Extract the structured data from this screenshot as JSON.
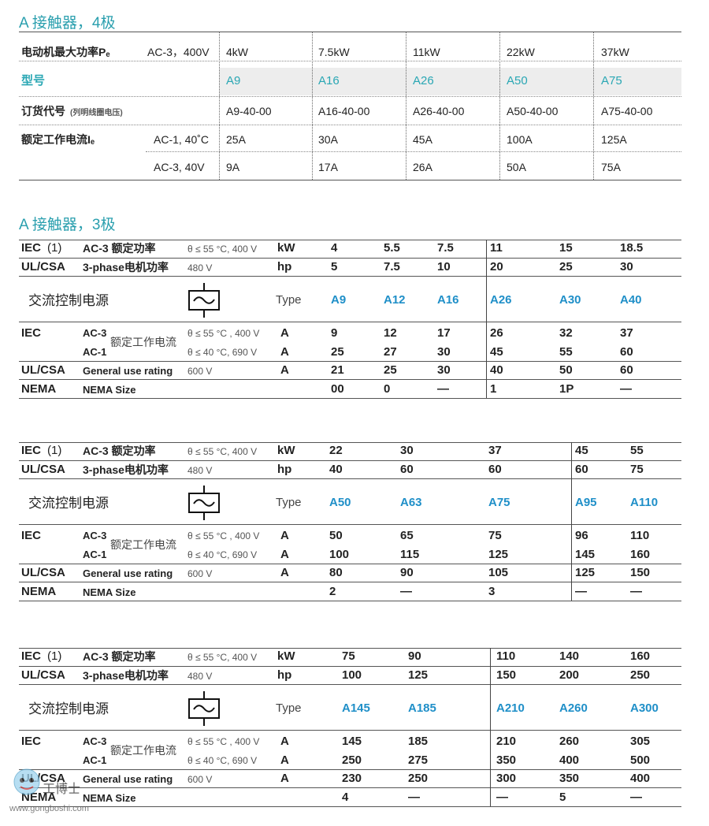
{
  "four_pole": {
    "title": "A 接触器，4极",
    "rows": [
      {
        "label": "电动机最大功率Pₑ",
        "sub": "AC-3，400V",
        "values": [
          "4kW",
          "7.5kW",
          "11kW",
          "22kW",
          "37kW"
        ]
      },
      {
        "label": "型号",
        "sub": "",
        "values": [
          "A9",
          "A16",
          "A26",
          "A50",
          "A75"
        ],
        "highlight": true
      },
      {
        "label": "订货代号",
        "label_note": "(列明线圈电压)",
        "sub": "",
        "values": [
          "A9-40-00",
          "A16-40-00",
          "A26-40-00",
          "A50-40-00",
          "A75-40-00"
        ]
      },
      {
        "label": "额定工作电流Iₑ",
        "sub": "AC-1, 40˚C",
        "values": [
          "25A",
          "30A",
          "45A",
          "100A",
          "125A"
        ]
      },
      {
        "label": "",
        "sub": "AC-3, 40V",
        "values": [
          "9A",
          "17A",
          "26A",
          "50A",
          "75A"
        ]
      }
    ]
  },
  "three_pole": {
    "title": "A 接触器，3极",
    "labels": {
      "iec1": "IEC",
      "iec1_note": "(1)",
      "ac3_power": "AC-3 额定功率",
      "cond_55_400": "θ ≤ 55 °C, 400 V",
      "kw": "kW",
      "ulcsa": "UL/CSA",
      "three_phase": "3-phase电机功率",
      "v480": "480 V",
      "hp": "hp",
      "ac_control": "交流控制电源",
      "type": "Type",
      "iec": "IEC",
      "ac3": "AC-3",
      "ac1": "AC-1",
      "rated_current": "额定工作电流",
      "cond_55_400b": "θ ≤ 55 °C , 400 V",
      "cond_40_690": "θ ≤ 40 °C, 690 V",
      "amp": "A",
      "general_use": "General use rating",
      "v600": "600 V",
      "nema": "NEMA",
      "nema_size": "NEMA Size"
    },
    "tables": [
      {
        "kw": [
          "4",
          "5.5",
          "7.5",
          "11",
          "15",
          "18.5"
        ],
        "hp": [
          "5",
          "7.5",
          "10",
          "20",
          "25",
          "30"
        ],
        "type": [
          "A9",
          "A12",
          "A16",
          "A26",
          "A30",
          "A40"
        ],
        "ac3": [
          "9",
          "12",
          "17",
          "26",
          "32",
          "37"
        ],
        "ac1": [
          "25",
          "27",
          "30",
          "45",
          "55",
          "60"
        ],
        "ul": [
          "21",
          "25",
          "30",
          "40",
          "50",
          "60"
        ],
        "nema": [
          "00",
          "0",
          "—",
          "1",
          "1P",
          "—"
        ]
      },
      {
        "kw": [
          "22",
          "30",
          "37",
          "45",
          "55"
        ],
        "hp": [
          "40",
          "60",
          "60",
          "60",
          "75"
        ],
        "type": [
          "A50",
          "A63",
          "A75",
          "A95",
          "A110"
        ],
        "ac3": [
          "50",
          "65",
          "75",
          "96",
          "110"
        ],
        "ac1": [
          "100",
          "115",
          "125",
          "145",
          "160"
        ],
        "ul": [
          "80",
          "90",
          "105",
          "125",
          "150"
        ],
        "nema": [
          "2",
          "—",
          "3",
          "—",
          "—"
        ]
      },
      {
        "kw": [
          "75",
          "90",
          "110",
          "140",
          "160"
        ],
        "hp": [
          "100",
          "125",
          "150",
          "200",
          "250"
        ],
        "type": [
          "A145",
          "A185",
          "A210",
          "A260",
          "A300"
        ],
        "ac3": [
          "145",
          "185",
          "210",
          "260",
          "305"
        ],
        "ac1": [
          "250",
          "275",
          "350",
          "400",
          "500"
        ],
        "ul": [
          "230",
          "250",
          "300",
          "350",
          "400"
        ],
        "nema": [
          "4",
          "—",
          "—",
          "5",
          "—"
        ]
      }
    ]
  },
  "watermark": {
    "text": "www.gongboshi.com",
    "brand": "工博士"
  },
  "colors": {
    "heading": "#2a9fae",
    "type_value": "#1f8fc8",
    "highlight_bg": "#ededed"
  }
}
